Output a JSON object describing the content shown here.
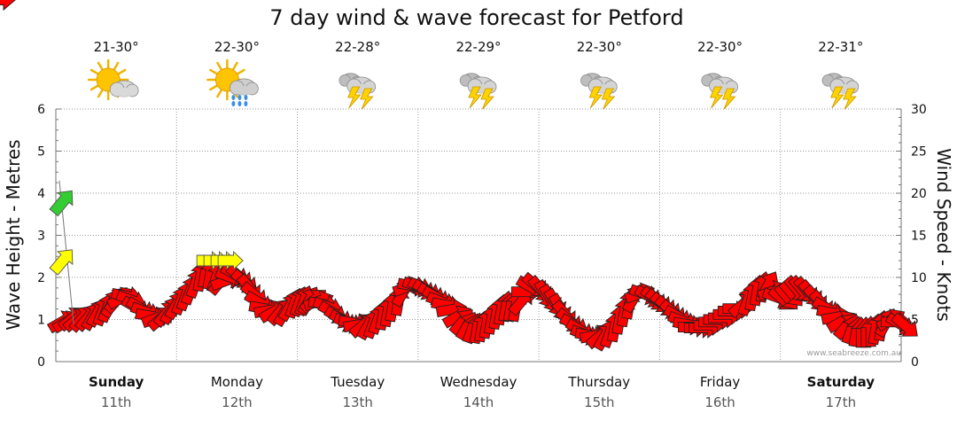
{
  "chart_data": {
    "type": "line",
    "title": "7 day wind & wave forecast for Petford",
    "ylabel": "Wave Height - Metres",
    "ylabel_right": "Wind Speed - Knots",
    "ylim": [
      0,
      6
    ],
    "ylim_right": [
      0,
      30
    ],
    "yticks": [
      "0",
      "1",
      "2",
      "3",
      "4",
      "5",
      "6"
    ],
    "yticks_right": [
      "0",
      "5",
      "10",
      "15",
      "20",
      "25",
      "30"
    ],
    "grid": true,
    "days": [
      {
        "name": "Sunday",
        "date": "11th",
        "temp": "21-30°",
        "icon": "partly-cloudy-icon",
        "bold": true
      },
      {
        "name": "Monday",
        "date": "12th",
        "temp": "22-30°",
        "icon": "sun-shower-icon",
        "bold": false
      },
      {
        "name": "Tuesday",
        "date": "13th",
        "temp": "22-28°",
        "icon": "thunderstorm-icon",
        "bold": false
      },
      {
        "name": "Wednesday",
        "date": "14th",
        "temp": "22-29°",
        "icon": "thunderstorm-icon",
        "bold": false
      },
      {
        "name": "Thursday",
        "date": "15th",
        "temp": "22-30°",
        "icon": "thunderstorm-icon",
        "bold": false
      },
      {
        "name": "Friday",
        "date": "16th",
        "temp": "22-30°",
        "icon": "thunderstorm-icon",
        "bold": false
      },
      {
        "name": "Saturday",
        "date": "17th",
        "temp": "22-31°",
        "icon": "thunderstorm-icon",
        "bold": true
      }
    ],
    "series": [
      {
        "name": "Wind",
        "unit": "knots",
        "day_offset": [
          0,
          0.04,
          0.08,
          0.12,
          0.16,
          0.21,
          0.25,
          0.29,
          0.33,
          0.37,
          0.41,
          0.45,
          0.49,
          0.53,
          0.57,
          0.61,
          0.65,
          0.69,
          0.73,
          0.78,
          0.82,
          0.86,
          0.9,
          0.94,
          0.98,
          1.02,
          1.06,
          1.1,
          1.14,
          1.18,
          1.22,
          1.27,
          1.31,
          1.35,
          1.39,
          1.43,
          1.47,
          1.51,
          1.55,
          1.59,
          1.63,
          1.67,
          1.71,
          1.75,
          1.8,
          1.84,
          1.88,
          1.92,
          1.96,
          2.0,
          2.04,
          2.08,
          2.12,
          2.16,
          2.2,
          2.24,
          2.29,
          2.33,
          2.37,
          2.41,
          2.45,
          2.49,
          2.53,
          2.57,
          2.61,
          2.65,
          2.69,
          2.73,
          2.78,
          2.82,
          2.86,
          2.9,
          2.94,
          2.98,
          3.02,
          3.06,
          3.1,
          3.14,
          3.18,
          3.22,
          3.27,
          3.31,
          3.35,
          3.39,
          3.43,
          3.47,
          3.51,
          3.55,
          3.59,
          3.63,
          3.67,
          3.71,
          3.75,
          3.8,
          3.84,
          3.88,
          3.92,
          3.96,
          4.0,
          4.04,
          4.08,
          4.12,
          4.16,
          4.2,
          4.24,
          4.29,
          4.33,
          4.37,
          4.41,
          4.45,
          4.49,
          4.53,
          4.57,
          4.61,
          4.65,
          4.69,
          4.73,
          4.78,
          4.82,
          4.86,
          4.9,
          4.94,
          4.98,
          5.02,
          5.06,
          5.1,
          5.14,
          5.18,
          5.22,
          5.27,
          5.31,
          5.35,
          5.39,
          5.43,
          5.47,
          5.51,
          5.55,
          5.59,
          5.63,
          5.67,
          5.71,
          5.75,
          5.8,
          5.84,
          5.88,
          5.92,
          5.96,
          6.0,
          6.04,
          6.08,
          6.12,
          6.16,
          6.2,
          6.24,
          6.29,
          6.33,
          6.37,
          6.41,
          6.45,
          6.49,
          6.53,
          6.57,
          6.61,
          6.65,
          6.69,
          6.73,
          6.78,
          6.82,
          6.86,
          6.9,
          6.94,
          6.98
        ],
        "values": [
          4.8,
          4.8,
          5.2,
          5.1,
          5.2,
          5.3,
          5.5,
          5.9,
          6.1,
          6.5,
          7.0,
          7.4,
          7.6,
          7.8,
          7.3,
          6.4,
          6.3,
          5.9,
          5.4,
          5.2,
          5.2,
          5.8,
          6.2,
          6.8,
          7.4,
          7.9,
          8.6,
          9.4,
          10.2,
          10.6,
          10.4,
          10.0,
          9.6,
          9.6,
          10.0,
          10.3,
          10.0,
          9.4,
          8.7,
          7.9,
          7.0,
          6.3,
          6.1,
          6.0,
          6.0,
          6.0,
          6.6,
          7.0,
          7.2,
          7.3,
          7.3,
          7.3,
          7.2,
          6.8,
          6.5,
          5.8,
          5.2,
          4.8,
          4.6,
          4.6,
          4.4,
          4.4,
          4.4,
          4.6,
          5.1,
          5.6,
          6.0,
          6.6,
          7.3,
          8.3,
          8.9,
          9.0,
          8.9,
          8.6,
          8.4,
          8.0,
          7.6,
          7.1,
          6.7,
          6.2,
          5.4,
          4.8,
          4.3,
          4.0,
          4.0,
          4.2,
          4.6,
          5.1,
          5.7,
          6.2,
          6.6,
          6.6,
          6.6,
          7.2,
          8.3,
          8.8,
          9.0,
          8.5,
          7.9,
          7.4,
          6.9,
          6.3,
          5.6,
          4.8,
          4.3,
          3.7,
          3.2,
          3.1,
          3.1,
          3.1,
          3.1,
          3.5,
          4.2,
          5.1,
          6.0,
          6.9,
          7.6,
          8.1,
          8.0,
          7.7,
          7.4,
          7.1,
          6.7,
          6.3,
          5.8,
          5.3,
          4.8,
          4.4,
          4.1,
          4.0,
          4.0,
          4.3,
          4.7,
          5.0,
          5.2,
          5.6,
          6.0,
          6.3,
          6.8,
          7.3,
          7.9,
          8.5,
          8.9,
          9.1,
          8.4,
          7.6,
          7.4,
          7.6,
          8.0,
          8.5,
          8.5,
          8.4,
          8.0,
          7.4,
          6.8,
          6.3,
          5.8,
          5.3,
          4.8,
          4.3,
          3.9,
          3.6,
          3.5,
          3.5,
          3.6,
          3.9,
          4.3,
          4.7,
          5.0,
          4.7,
          4.4,
          4.2,
          4.0,
          3.8
        ],
        "direction_deg_to": [
          60,
          60,
          50,
          50,
          40,
          40,
          30,
          30,
          20,
          20,
          30,
          40,
          60,
          100,
          110,
          120,
          120,
          110,
          100,
          70,
          50,
          40,
          30,
          30,
          20,
          20,
          20,
          20,
          10,
          10,
          10,
          20,
          40,
          70,
          110,
          120,
          130,
          130,
          140,
          130,
          120,
          100,
          80,
          60,
          40,
          30,
          30,
          20,
          20,
          20,
          30,
          50,
          70,
          100,
          110,
          120,
          120,
          120,
          110,
          100,
          80,
          50,
          30,
          20,
          20,
          10,
          10,
          10,
          10,
          30,
          70,
          100,
          110,
          120,
          120,
          120,
          120,
          110,
          100,
          80,
          60,
          40,
          30,
          20,
          10,
          10,
          10,
          10,
          10,
          10,
          10,
          10,
          10,
          40,
          90,
          120,
          130,
          140,
          150,
          150,
          150,
          150,
          140,
          130,
          120,
          120,
          110,
          100,
          80,
          50,
          30,
          20,
          10,
          10,
          10,
          10,
          30,
          70,
          110,
          120,
          130,
          130,
          130,
          130,
          130,
          120,
          110,
          100,
          90,
          90,
          90,
          90,
          90,
          90,
          90,
          90,
          90,
          90,
          50,
          20,
          10,
          10,
          10,
          30,
          70,
          110,
          130,
          140,
          140,
          140,
          140,
          140,
          140,
          140,
          140,
          120,
          100,
          80,
          60,
          40,
          20,
          10,
          0,
          0,
          0,
          10,
          10,
          30,
          60,
          90,
          120,
          130,
          150
        ],
        "color": "#ff0000"
      },
      {
        "name": "Swell",
        "unit": "metres",
        "points": [
          {
            "day_offset": 0.0,
            "value": 3.8,
            "direction_deg_to": 40,
            "color": "#33cc33"
          },
          {
            "day_offset": 0.0,
            "value": 2.4,
            "direction_deg_to": 40,
            "color": "#ffff00"
          },
          {
            "day_offset": 1.3,
            "value": 2.4,
            "direction_deg_to": 90,
            "color": "#ffff00"
          }
        ]
      }
    ]
  },
  "credit": "www.seabreeze.com.au"
}
